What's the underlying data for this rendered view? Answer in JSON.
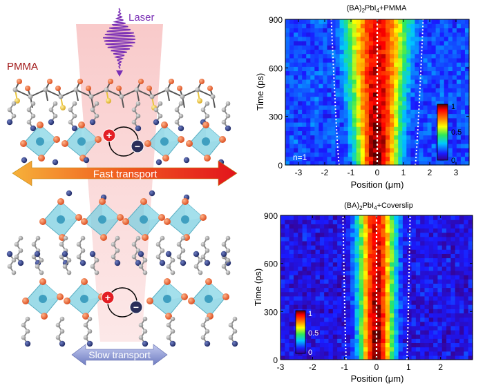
{
  "schematic": {
    "laser_label": "Laser",
    "pmma_label": "PMMA",
    "fast_label": "Fast transport",
    "slow_label": "Slow transport",
    "plus_symbol": "+",
    "minus_symbol": "−",
    "colors": {
      "laser": "#7a2fb5",
      "beam": "#f6c9c9",
      "pmma_label": "#a01515",
      "octahedron": "#7ccfe0",
      "iodine": "#e8602a",
      "nitrogen": "#26367a",
      "carbon": "#9a9a9a",
      "sulfur_yellow": "#e8c43a",
      "fast_arrow_start": "#f6a33a",
      "fast_arrow_end": "#e41b1b",
      "slow_arrow": "#8f9bd4"
    }
  },
  "chart_data": [
    {
      "type": "heatmap",
      "title": "(BA)2PbI4+PMMA",
      "title_parts": [
        "(BA)",
        "2",
        "PbI",
        "4",
        "+PMMA"
      ],
      "xlabel": "Position (μm)",
      "ylabel": "Time (ps)",
      "xlim": [
        -3.5,
        3.5
      ],
      "ylim": [
        0,
        900
      ],
      "xticks": [
        -3,
        -2,
        -1,
        0,
        1,
        2,
        3
      ],
      "yticks": [
        0,
        300,
        600,
        900
      ],
      "annotation": "n=1",
      "colorbar": {
        "ticks": [
          "0",
          "0.5",
          "1"
        ],
        "placement": "right"
      },
      "profile_width_um": {
        "t0": 0.95,
        "t900": 1.55
      },
      "contour_x_um": {
        "t0": 1.45,
        "t900": 1.75
      }
    },
    {
      "type": "heatmap",
      "title": "(BA)2PbI4+Coverslip",
      "title_parts": [
        "(BA)",
        "2",
        "PbI",
        "4",
        "+Coverslip"
      ],
      "xlabel": "Position (μm)",
      "ylabel": "Time (ps)",
      "xlim": [
        -3,
        3
      ],
      "ylim": [
        0,
        900
      ],
      "xticks": [
        -3,
        -2,
        -1,
        0,
        1,
        2
      ],
      "yticks": [
        0,
        300,
        600,
        900
      ],
      "colorbar": {
        "ticks": [
          "0",
          "0.5",
          "1"
        ],
        "placement": "left"
      },
      "profile_width_um": {
        "t0": 0.62,
        "t900": 0.72
      },
      "contour_x_um": {
        "t0": 0.95,
        "t900": 1.05
      }
    }
  ]
}
